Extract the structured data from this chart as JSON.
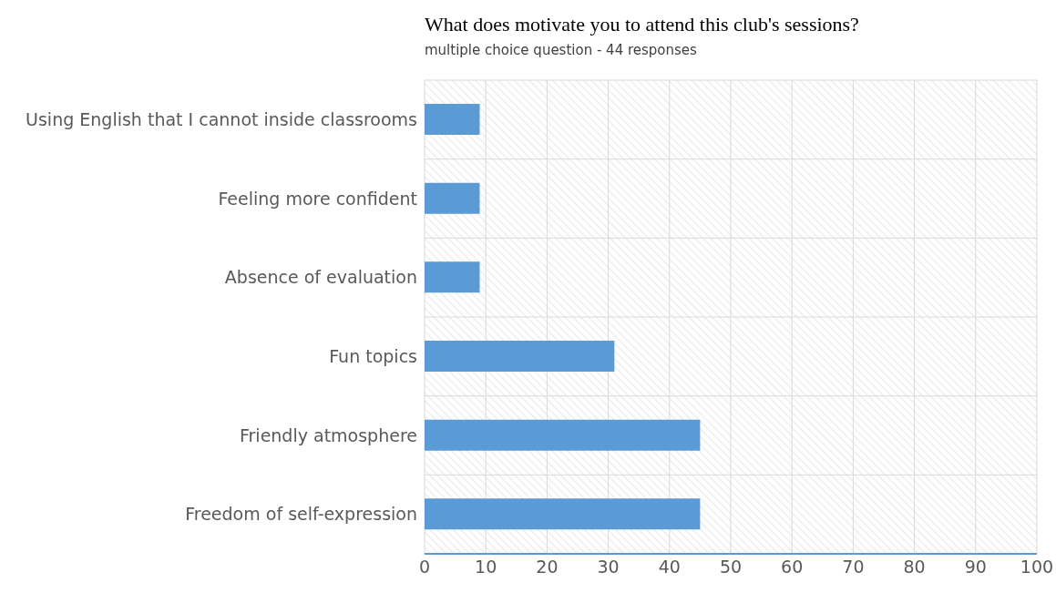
{
  "chart_data": {
    "type": "bar",
    "orientation": "horizontal",
    "title": "What does motivate you to attend this club's sessions?",
    "subtitle": "multiple choice question - 44 responses",
    "categories": [
      "Using English that I cannot inside classrooms",
      "Feeling more confident",
      "Absence of evaluation",
      "Fun topics",
      "Friendly atmosphere",
      "Freedom of self-expression"
    ],
    "values": [
      9,
      9,
      9,
      31,
      45,
      45
    ],
    "color": "#5b9bd5",
    "xlim": [
      0,
      100
    ],
    "xticks": [
      0,
      10,
      20,
      30,
      40,
      50,
      60,
      70,
      80,
      90,
      100
    ],
    "grid": true
  }
}
